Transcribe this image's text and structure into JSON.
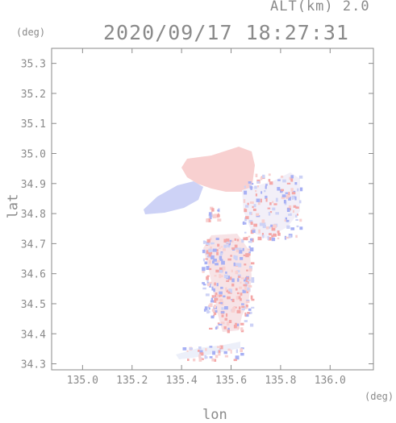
{
  "header": {
    "alt_label": "ALT(km) 2.0",
    "timestamp": "2020/09/17 18:27:31"
  },
  "axes": {
    "x_unit": "(deg)",
    "y_unit": "(deg)",
    "x_title": "lon",
    "y_title": "lat",
    "x_ticks": [
      "135.0",
      "135.2",
      "135.4",
      "135.6",
      "135.8",
      "136.0"
    ],
    "y_ticks": [
      "35.3",
      "35.2",
      "35.1",
      "35.0",
      "34.9",
      "34.8",
      "34.7",
      "34.6",
      "34.5",
      "34.4",
      "34.3"
    ],
    "xlim": [
      134.875,
      136.175
    ],
    "ylim": [
      34.28,
      35.35
    ]
  },
  "colors": {
    "axis": "#8a8a8a",
    "positive": "#f4a7a7",
    "negative": "#a7b0f4",
    "light_positive": "#f8d0d0",
    "light_negative": "#cdd2f6"
  }
}
